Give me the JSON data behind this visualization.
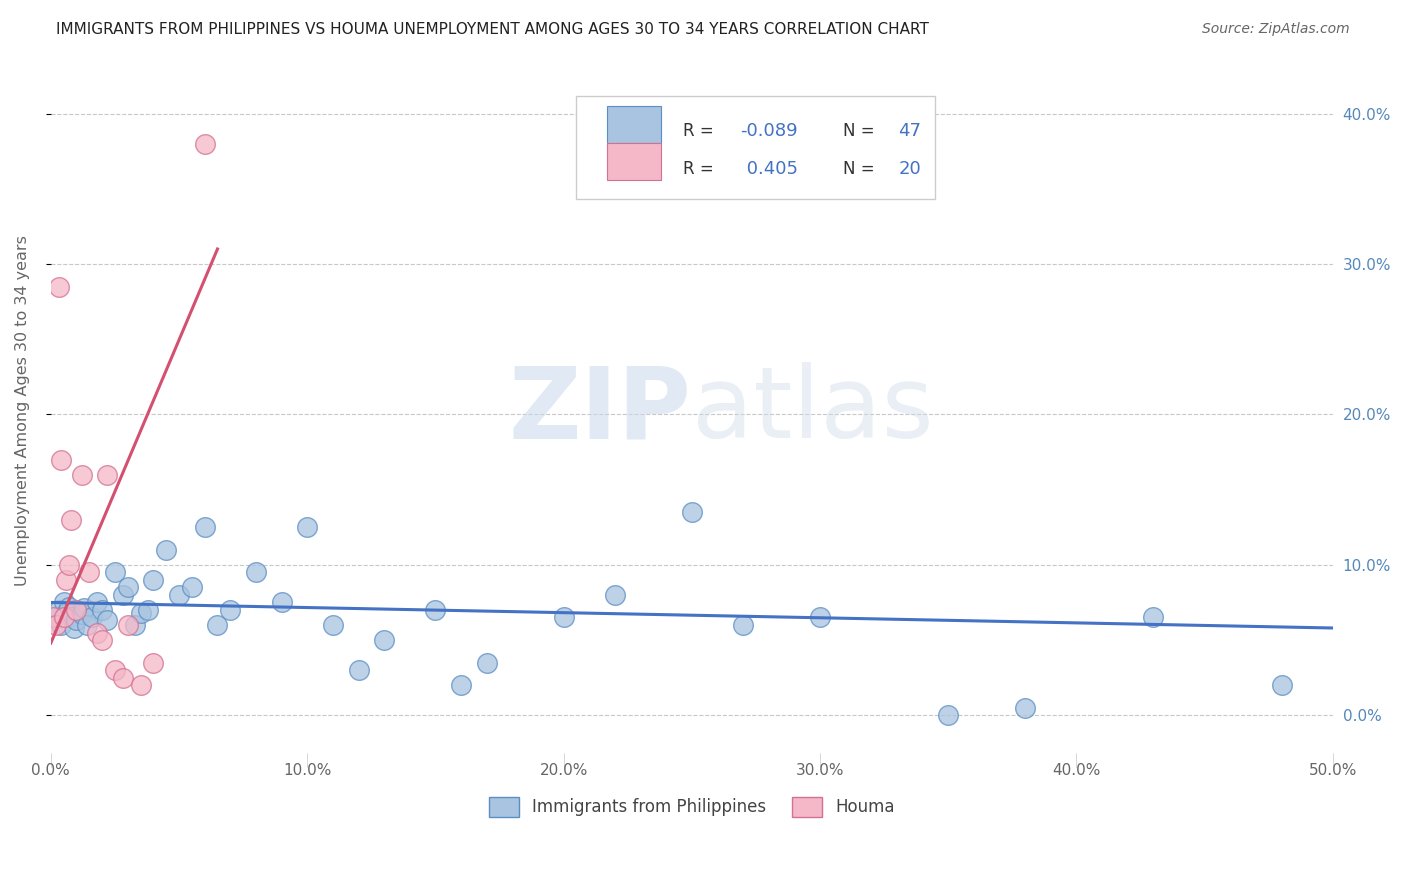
{
  "title": "IMMIGRANTS FROM PHILIPPINES VS HOUMA UNEMPLOYMENT AMONG AGES 30 TO 34 YEARS CORRELATION CHART",
  "source": "Source: ZipAtlas.com",
  "ylabel": "Unemployment Among Ages 30 to 34 years",
  "xlim": [
    0.0,
    0.5
  ],
  "ylim": [
    -0.025,
    0.43
  ],
  "xticks": [
    0.0,
    0.1,
    0.2,
    0.3,
    0.4,
    0.5
  ],
  "yticks": [
    0.0,
    0.1,
    0.2,
    0.3,
    0.4
  ],
  "blue_scatter_x": [
    0.002,
    0.003,
    0.004,
    0.005,
    0.006,
    0.007,
    0.008,
    0.009,
    0.01,
    0.012,
    0.013,
    0.014,
    0.016,
    0.018,
    0.02,
    0.022,
    0.025,
    0.028,
    0.03,
    0.033,
    0.035,
    0.038,
    0.04,
    0.045,
    0.05,
    0.055,
    0.06,
    0.065,
    0.07,
    0.08,
    0.09,
    0.1,
    0.11,
    0.12,
    0.13,
    0.15,
    0.16,
    0.17,
    0.2,
    0.22,
    0.25,
    0.27,
    0.3,
    0.35,
    0.38,
    0.43,
    0.48
  ],
  "blue_scatter_y": [
    0.065,
    0.07,
    0.06,
    0.075,
    0.068,
    0.072,
    0.065,
    0.058,
    0.063,
    0.067,
    0.071,
    0.06,
    0.065,
    0.075,
    0.07,
    0.063,
    0.095,
    0.08,
    0.085,
    0.06,
    0.068,
    0.07,
    0.09,
    0.11,
    0.08,
    0.085,
    0.125,
    0.06,
    0.07,
    0.095,
    0.075,
    0.125,
    0.06,
    0.03,
    0.05,
    0.07,
    0.02,
    0.035,
    0.065,
    0.08,
    0.135,
    0.06,
    0.065,
    0.0,
    0.005,
    0.065,
    0.02
  ],
  "pink_scatter_x": [
    0.001,
    0.002,
    0.003,
    0.004,
    0.005,
    0.006,
    0.007,
    0.008,
    0.01,
    0.012,
    0.015,
    0.018,
    0.02,
    0.022,
    0.025,
    0.028,
    0.03,
    0.035,
    0.04,
    0.06
  ],
  "pink_scatter_y": [
    0.065,
    0.06,
    0.285,
    0.17,
    0.065,
    0.09,
    0.1,
    0.13,
    0.07,
    0.16,
    0.095,
    0.055,
    0.05,
    0.16,
    0.03,
    0.025,
    0.06,
    0.02,
    0.035,
    0.38
  ],
  "blue_R": -0.089,
  "blue_N": 47,
  "pink_R": 0.405,
  "pink_N": 20,
  "blue_line_x": [
    0.0,
    0.5
  ],
  "blue_line_y": [
    0.075,
    0.058
  ],
  "pink_line_x": [
    0.0,
    0.065
  ],
  "pink_line_y": [
    0.048,
    0.31
  ],
  "blue_color": "#a8c4e0",
  "blue_edge_color": "#5b8ec4",
  "blue_line_color": "#4472c4",
  "pink_color": "#f4b8c8",
  "pink_edge_color": "#d47090",
  "pink_line_color": "#d45070",
  "watermark_zip": "ZIP",
  "watermark_atlas": "atlas",
  "grid_color": "#c8c8c8",
  "title_color": "#222222",
  "axis_label_color": "#666666",
  "right_axis_color": "#5588bb",
  "legend_label_color": "#333333",
  "bottom_label_color": "#444444"
}
